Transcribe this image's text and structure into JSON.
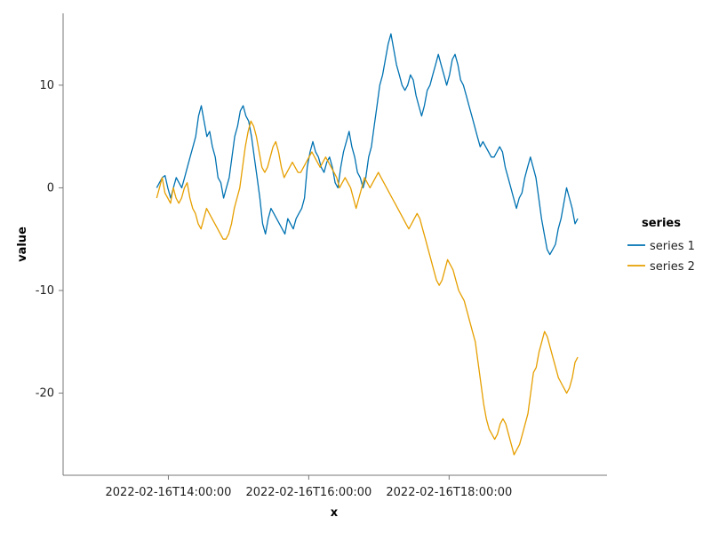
{
  "chart_data": {
    "type": "line",
    "xlabel": "x",
    "ylabel": "value",
    "x_range": [
      "2022-02-16T13:50:00",
      "2022-02-16T19:50:00"
    ],
    "xlim": [
      "2022-02-16T12:30:00",
      "2022-02-16T20:15:00"
    ],
    "ylim": [
      -28,
      17
    ],
    "x_ticks": [
      "2022-02-16T14:00:00",
      "2022-02-16T16:00:00",
      "2022-02-16T18:00:00"
    ],
    "y_ticks": [
      10,
      0,
      -10,
      -20
    ],
    "grid": false,
    "legend": {
      "title": "series",
      "placement": "right"
    },
    "series": [
      {
        "name": "series 1",
        "color": "#0072b2",
        "values": [
          0,
          0.5,
          1,
          1.2,
          0,
          -1,
          0,
          1,
          0.5,
          0,
          1,
          2,
          3,
          4,
          5,
          7,
          8,
          6.5,
          5,
          5.5,
          4,
          3,
          1,
          0.5,
          -1,
          0,
          1,
          3,
          5,
          6,
          7.5,
          8,
          7,
          6.5,
          5,
          3,
          1,
          -1,
          -3.5,
          -4.5,
          -3,
          -2,
          -2.5,
          -3,
          -3.5,
          -4,
          -4.5,
          -3,
          -3.5,
          -4,
          -3,
          -2.5,
          -2,
          -1,
          2,
          3.5,
          4.5,
          3.5,
          3,
          2,
          1.5,
          2.5,
          3,
          2,
          0.5,
          0,
          2,
          3.5,
          4.5,
          5.5,
          4,
          3,
          1.5,
          1,
          0,
          1,
          3,
          4,
          6,
          8,
          10,
          11,
          12.5,
          14,
          15,
          13.5,
          12,
          11,
          10,
          9.5,
          10,
          11,
          10.5,
          9,
          8,
          7,
          8,
          9.5,
          10,
          11,
          12,
          13,
          12,
          11,
          10,
          11,
          12.5,
          13,
          12,
          10.5,
          10,
          9,
          8,
          7,
          6,
          5,
          4,
          4.5,
          4,
          3.5,
          3,
          3,
          3.5,
          4,
          3.5,
          2,
          1,
          0,
          -1,
          -2,
          -1,
          -0.5,
          1,
          2,
          3,
          2,
          1,
          -1,
          -3,
          -4.5,
          -6,
          -6.5,
          -6,
          -5.5,
          -4,
          -3,
          -1.5,
          0,
          -1,
          -2,
          -3.5,
          -3
        ]
      },
      {
        "name": "series 2",
        "color": "#e69f00",
        "values": [
          -1,
          0,
          1,
          -0.5,
          -1,
          -1.5,
          0,
          -1,
          -1.5,
          -1,
          0,
          0.5,
          -1,
          -2,
          -2.5,
          -3.5,
          -4,
          -3,
          -2,
          -2.5,
          -3,
          -3.5,
          -4,
          -4.5,
          -5,
          -5,
          -4.5,
          -3.5,
          -2,
          -1,
          0,
          2,
          4,
          5.5,
          6.5,
          6,
          5,
          3.5,
          2,
          1.5,
          2,
          3,
          4,
          4.5,
          3.5,
          2,
          1,
          1.5,
          2,
          2.5,
          2,
          1.5,
          1.5,
          2,
          2.5,
          3,
          3.5,
          3,
          2.5,
          2,
          2.5,
          3,
          2.5,
          2,
          1.5,
          1,
          0,
          0.5,
          1,
          0.5,
          0,
          -1,
          -2,
          -1,
          0,
          1,
          0.5,
          0,
          0.5,
          1,
          1.5,
          1,
          0.5,
          0,
          -0.5,
          -1,
          -1.5,
          -2,
          -2.5,
          -3,
          -3.5,
          -4,
          -3.5,
          -3,
          -2.5,
          -3,
          -4,
          -5,
          -6,
          -7,
          -8,
          -9,
          -9.5,
          -9,
          -8,
          -7,
          -7.5,
          -8,
          -9,
          -10,
          -10.5,
          -11,
          -12,
          -13,
          -14,
          -15,
          -17,
          -19,
          -21,
          -22.5,
          -23.5,
          -24,
          -24.5,
          -24,
          -23,
          -22.5,
          -23,
          -24,
          -25,
          -26,
          -25.5,
          -25,
          -24,
          -23,
          -22,
          -20,
          -18,
          -17.5,
          -16,
          -15,
          -14,
          -14.5,
          -15.5,
          -16.5,
          -17.5,
          -18.5,
          -19,
          -19.5,
          -20,
          -19.5,
          -18.5,
          -17,
          -16.5
        ]
      }
    ]
  }
}
